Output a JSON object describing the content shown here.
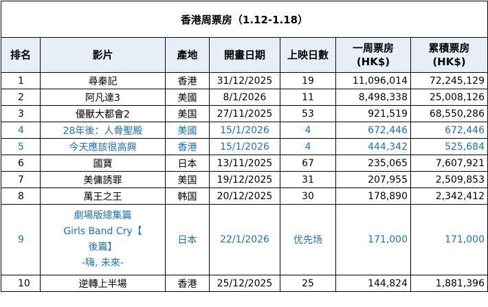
{
  "title": "香港周票房（1.12-1.18）",
  "headers": {
    "rank": "排名",
    "film": "影片",
    "origin": "產地",
    "release": "開畫日期",
    "days": "上映日數",
    "weekly_line1": "一周票房",
    "weekly_line2": "(HK$)",
    "total_line1": "累積票房",
    "total_line2": "(HK$)"
  },
  "rows": [
    {
      "rank": "1",
      "film": "尋秦記",
      "origin": "香港",
      "release": "31/12/2025",
      "days": "19",
      "weekly": "11,096,014",
      "total": "72,245,129",
      "highlight": false
    },
    {
      "rank": "2",
      "film": "阿凡達3",
      "origin": "美國",
      "release": "8/1/2026",
      "days": "11",
      "weekly": "8,498,338",
      "total": "25,008,126",
      "highlight": false
    },
    {
      "rank": "3",
      "film": "優獸大都會2",
      "origin": "美国",
      "release": "27/11/2025",
      "days": "53",
      "weekly": "921,519",
      "total": "68,550,286",
      "highlight": false
    },
    {
      "rank": "4",
      "film": "28年後：人骨聖殿",
      "origin": "美國",
      "release": "15/1/2026",
      "days": "4",
      "weekly": "672,446",
      "total": "672,446",
      "highlight": true
    },
    {
      "rank": "5",
      "film": "今天應該很高興",
      "origin": "香港",
      "release": "15/1/2026",
      "days": "4",
      "weekly": "444,342",
      "total": "525,684",
      "highlight": true
    },
    {
      "rank": "6",
      "film": "國寶",
      "origin": "日本",
      "release": "13/11/2025",
      "days": "67",
      "weekly": "235,065",
      "total": "7,607,921",
      "highlight": false
    },
    {
      "rank": "7",
      "film": "美傭誘罪",
      "origin": "美国",
      "release": "19/12/2025",
      "days": "31",
      "weekly": "207,955",
      "total": "2,509,853",
      "highlight": false
    },
    {
      "rank": "8",
      "film": "萬王之王",
      "origin": "韩国",
      "release": "20/12/2025",
      "days": "30",
      "weekly": "178,890",
      "total": "2,342,412",
      "highlight": false
    },
    {
      "rank": "9",
      "film_lines": [
        "劇場版總集篇",
        "Girls Band Cry【",
        "後篇】",
        "-嗨, 未來-"
      ],
      "origin": "日本",
      "release": "22/1/2026",
      "days": "优先场",
      "weekly": "171,000",
      "total": "171,000",
      "highlight": true
    },
    {
      "rank": "10",
      "film": "逆轉上半場",
      "origin": "香港",
      "release": "25/12/2025",
      "days": "25",
      "weekly": "144,824",
      "total": "1,881,396",
      "highlight": false
    }
  ]
}
